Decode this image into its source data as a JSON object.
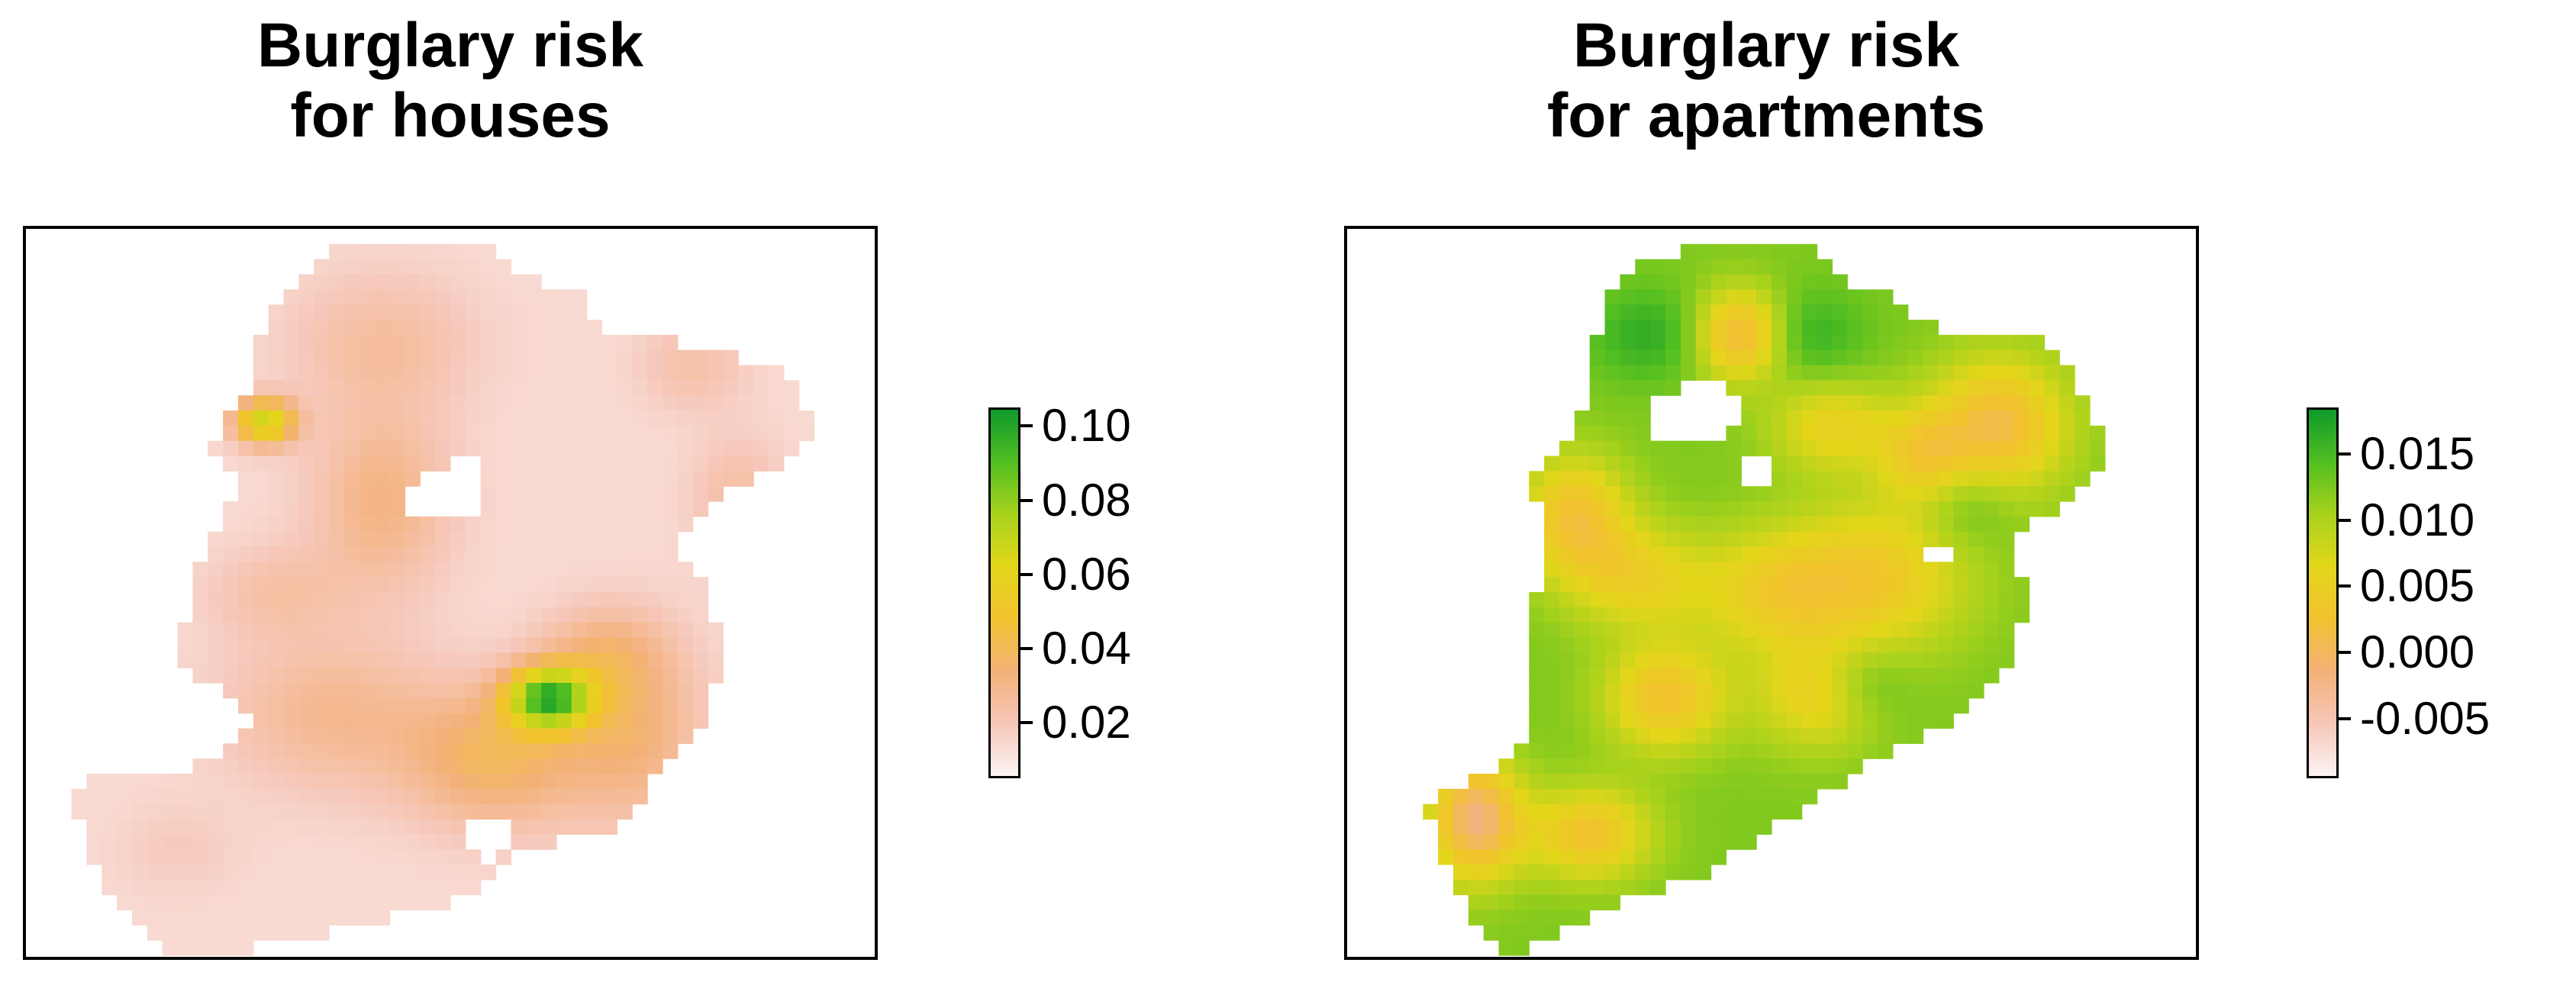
{
  "panels": [
    {
      "title_line1": "Burglary risk",
      "title_line2": "for houses",
      "legend": {
        "ticks": [
          "0.10",
          "0.08",
          "0.06",
          "0.04",
          "0.02"
        ],
        "tick_values": [
          0.1,
          0.08,
          0.06,
          0.04,
          0.02
        ],
        "min": 0.005,
        "max": 0.105
      }
    },
    {
      "title_line1": "Burglary risk",
      "title_line2": "for apartments",
      "legend": {
        "ticks": [
          "0.015",
          "0.010",
          "0.005",
          "0.000",
          "-0.005"
        ],
        "tick_values": [
          0.015,
          0.01,
          0.005,
          0.0,
          -0.005
        ],
        "min": -0.0095,
        "max": 0.0185
      }
    }
  ],
  "colors": {
    "scale": [
      "#fbf3f3",
      "#f6c7b9",
      "#f3b178",
      "#f2c22e",
      "#e3d61a",
      "#a8d21c",
      "#52be21",
      "#0f9a2c"
    ]
  }
}
